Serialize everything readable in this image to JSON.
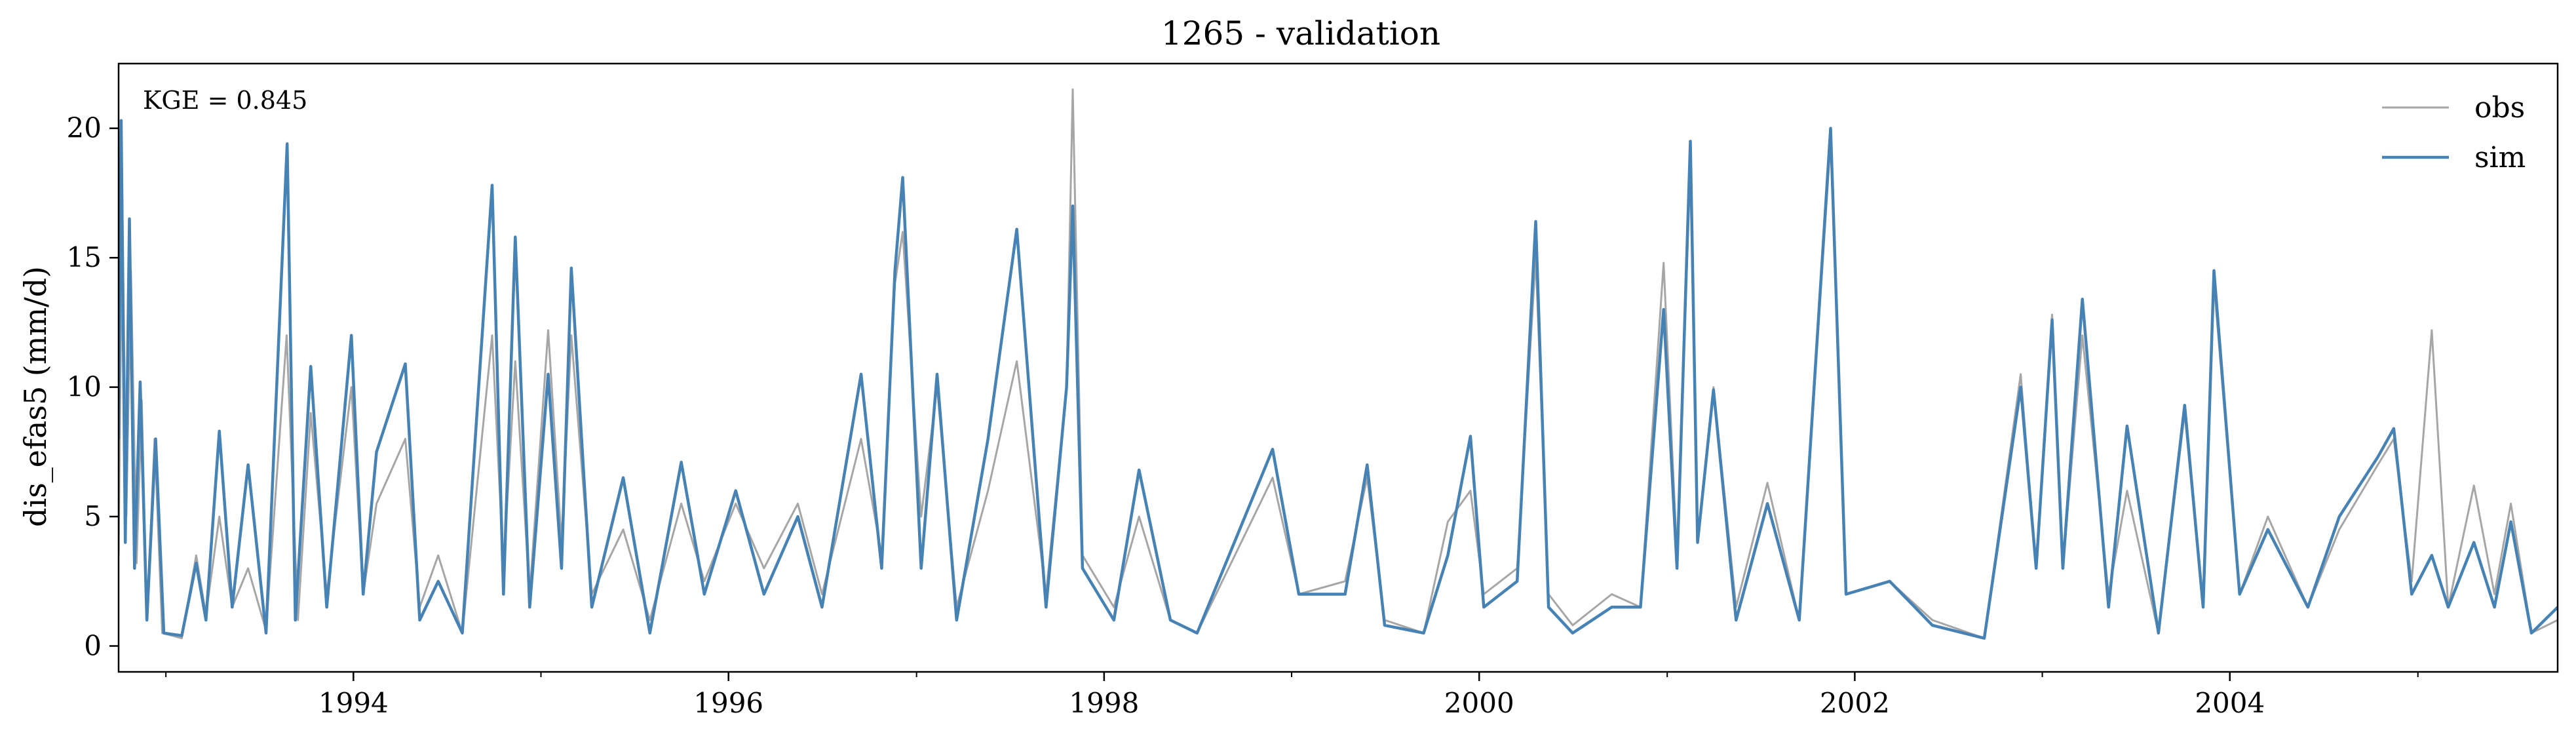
{
  "chart_data": {
    "type": "line",
    "title": "1265 - validation",
    "xlabel": "",
    "ylabel": "dis_efas5 (mm/d)",
    "annotation": "KGE = 0.845",
    "xlim": [
      "1992-10-01",
      "2005-09-30"
    ],
    "ylim": [
      -1,
      22.5
    ],
    "xticks": [
      "1994-01-01",
      "1996-01-01",
      "1998-01-01",
      "2000-01-01",
      "2002-01-01",
      "2004-01-01"
    ],
    "xticklabels": [
      "1994",
      "1996",
      "1998",
      "2000",
      "2002",
      "2004"
    ],
    "yticks": [
      0,
      5,
      10,
      15,
      20
    ],
    "yticklabels": [
      "0",
      "5",
      "10",
      "15",
      "20"
    ],
    "grid": false,
    "legend": {
      "placement": "top-right",
      "entries": [
        "obs",
        "sim"
      ]
    },
    "colors": {
      "obs": "#a6a6a6",
      "sim": "#4682b4"
    },
    "series": [
      {
        "name": "obs",
        "points": [
          [
            "1992-10-01",
            3.5
          ],
          [
            "1992-10-08",
            17.5
          ],
          [
            "1992-10-16",
            5.0
          ],
          [
            "1992-10-25",
            14.5
          ],
          [
            "1992-11-05",
            3.2
          ],
          [
            "1992-11-15",
            9.5
          ],
          [
            "1992-11-25",
            1.0
          ],
          [
            "1992-12-10",
            8.0
          ],
          [
            "1992-12-25",
            0.5
          ],
          [
            "1993-02-01",
            0.3
          ],
          [
            "1993-03-01",
            3.5
          ],
          [
            "1993-03-20",
            1.2
          ],
          [
            "1993-04-15",
            5.0
          ],
          [
            "1993-05-10",
            1.5
          ],
          [
            "1993-06-10",
            3.0
          ],
          [
            "1993-07-15",
            0.6
          ],
          [
            "1993-08-24",
            12.0
          ],
          [
            "1993-09-15",
            1.0
          ],
          [
            "1993-10-10",
            9.0
          ],
          [
            "1993-11-10",
            2.0
          ],
          [
            "1993-12-28",
            10.0
          ],
          [
            "1994-01-20",
            2.0
          ],
          [
            "1994-02-15",
            5.5
          ],
          [
            "1994-04-12",
            8.0
          ],
          [
            "1994-05-10",
            1.5
          ],
          [
            "1994-06-15",
            3.5
          ],
          [
            "1994-08-01",
            0.5
          ],
          [
            "1994-09-28",
            12.0
          ],
          [
            "1994-10-20",
            3.0
          ],
          [
            "1994-11-12",
            11.0
          ],
          [
            "1994-12-10",
            2.0
          ],
          [
            "1995-01-15",
            12.2
          ],
          [
            "1995-02-10",
            4.0
          ],
          [
            "1995-03-01",
            12.0
          ],
          [
            "1995-04-10",
            2.0
          ],
          [
            "1995-06-10",
            4.5
          ],
          [
            "1995-08-01",
            1.0
          ],
          [
            "1995-10-01",
            5.5
          ],
          [
            "1995-11-15",
            2.5
          ],
          [
            "1996-01-15",
            5.5
          ],
          [
            "1996-03-10",
            3.0
          ],
          [
            "1996-05-15",
            5.5
          ],
          [
            "1996-07-01",
            2.0
          ],
          [
            "1996-09-15",
            8.0
          ],
          [
            "1996-10-25",
            3.5
          ],
          [
            "1996-11-20",
            14.0
          ],
          [
            "1996-12-05",
            16.0
          ],
          [
            "1997-01-10",
            5.0
          ],
          [
            "1997-02-10",
            10.0
          ],
          [
            "1997-03-20",
            1.5
          ],
          [
            "1997-05-20",
            6.0
          ],
          [
            "1997-07-15",
            11.0
          ],
          [
            "1997-09-10",
            2.0
          ],
          [
            "1997-10-20",
            10.0
          ],
          [
            "1997-11-01",
            21.5
          ],
          [
            "1997-11-20",
            3.5
          ],
          [
            "1998-01-20",
            1.5
          ],
          [
            "1998-03-10",
            5.0
          ],
          [
            "1998-05-10",
            1.0
          ],
          [
            "1998-07-01",
            0.5
          ],
          [
            "1998-11-25",
            6.5
          ],
          [
            "1999-01-15",
            2.0
          ],
          [
            "1999-04-15",
            2.5
          ],
          [
            "1999-05-28",
            6.5
          ],
          [
            "1999-07-01",
            1.0
          ],
          [
            "1999-09-15",
            0.5
          ],
          [
            "1999-11-01",
            4.8
          ],
          [
            "1999-12-15",
            6.0
          ],
          [
            "2000-01-10",
            2.0
          ],
          [
            "2000-03-15",
            3.0
          ],
          [
            "2000-04-20",
            15.0
          ],
          [
            "2000-05-15",
            2.0
          ],
          [
            "2000-07-01",
            0.8
          ],
          [
            "2000-09-15",
            2.0
          ],
          [
            "2000-11-10",
            1.5
          ],
          [
            "2000-12-25",
            14.8
          ],
          [
            "2001-01-20",
            3.5
          ],
          [
            "2001-02-15",
            18.5
          ],
          [
            "2001-03-01",
            4.0
          ],
          [
            "2001-04-01",
            10.0
          ],
          [
            "2001-05-15",
            1.5
          ],
          [
            "2001-07-15",
            6.3
          ],
          [
            "2001-09-15",
            1.0
          ],
          [
            "2001-11-15",
            19.5
          ],
          [
            "2001-12-15",
            2.0
          ],
          [
            "2002-03-10",
            2.5
          ],
          [
            "2002-06-01",
            1.0
          ],
          [
            "2002-09-10",
            0.3
          ],
          [
            "2002-11-20",
            10.5
          ],
          [
            "2002-12-20",
            3.0
          ],
          [
            "2003-01-20",
            12.8
          ],
          [
            "2003-02-10",
            3.0
          ],
          [
            "2003-03-20",
            12.0
          ],
          [
            "2003-05-10",
            2.0
          ],
          [
            "2003-06-15",
            6.0
          ],
          [
            "2003-08-15",
            0.5
          ],
          [
            "2003-10-05",
            9.0
          ],
          [
            "2003-11-10",
            1.5
          ],
          [
            "2003-12-01",
            14.0
          ],
          [
            "2004-01-20",
            2.0
          ],
          [
            "2004-03-15",
            5.0
          ],
          [
            "2004-06-01",
            1.5
          ],
          [
            "2004-08-01",
            4.5
          ],
          [
            "2004-10-15",
            7.0
          ],
          [
            "2004-11-15",
            8.0
          ],
          [
            "2004-12-20",
            2.5
          ],
          [
            "2005-01-28",
            12.2
          ],
          [
            "2005-03-01",
            1.5
          ],
          [
            "2005-04-20",
            6.2
          ],
          [
            "2005-05-30",
            2.0
          ],
          [
            "2005-07-01",
            5.5
          ],
          [
            "2005-08-10",
            0.5
          ],
          [
            "2005-09-30",
            1.0
          ]
        ]
      },
      {
        "name": "sim",
        "points": [
          [
            "1992-10-01",
            8.0
          ],
          [
            "1992-10-06",
            20.3
          ],
          [
            "1992-10-14",
            4.0
          ],
          [
            "1992-10-22",
            16.5
          ],
          [
            "1992-11-01",
            3.0
          ],
          [
            "1992-11-12",
            10.2
          ],
          [
            "1992-11-25",
            1.0
          ],
          [
            "1992-12-12",
            8.0
          ],
          [
            "1992-12-28",
            0.5
          ],
          [
            "1993-02-01",
            0.4
          ],
          [
            "1993-03-01",
            3.2
          ],
          [
            "1993-03-20",
            1.0
          ],
          [
            "1993-04-15",
            8.3
          ],
          [
            "1993-05-10",
            1.5
          ],
          [
            "1993-06-10",
            7.0
          ],
          [
            "1993-07-15",
            0.5
          ],
          [
            "1993-08-25",
            19.4
          ],
          [
            "1993-09-10",
            1.0
          ],
          [
            "1993-10-10",
            10.8
          ],
          [
            "1993-11-10",
            1.5
          ],
          [
            "1993-12-28",
            12.0
          ],
          [
            "1994-01-20",
            2.0
          ],
          [
            "1994-02-15",
            7.5
          ],
          [
            "1994-04-12",
            10.9
          ],
          [
            "1994-05-10",
            1.0
          ],
          [
            "1994-06-15",
            2.5
          ],
          [
            "1994-08-01",
            0.5
          ],
          [
            "1994-09-28",
            17.8
          ],
          [
            "1994-10-20",
            2.0
          ],
          [
            "1994-11-12",
            15.8
          ],
          [
            "1994-12-10",
            1.5
          ],
          [
            "1995-01-15",
            10.5
          ],
          [
            "1995-02-10",
            3.0
          ],
          [
            "1995-03-01",
            14.6
          ],
          [
            "1995-04-10",
            1.5
          ],
          [
            "1995-06-10",
            6.5
          ],
          [
            "1995-08-01",
            0.5
          ],
          [
            "1995-10-01",
            7.1
          ],
          [
            "1995-11-15",
            2.0
          ],
          [
            "1996-01-15",
            6.0
          ],
          [
            "1996-03-10",
            2.0
          ],
          [
            "1996-05-15",
            5.0
          ],
          [
            "1996-07-01",
            1.5
          ],
          [
            "1996-09-15",
            10.5
          ],
          [
            "1996-10-25",
            3.0
          ],
          [
            "1996-11-20",
            14.5
          ],
          [
            "1996-12-05",
            18.1
          ],
          [
            "1997-01-10",
            3.0
          ],
          [
            "1997-02-10",
            10.5
          ],
          [
            "1997-03-20",
            1.0
          ],
          [
            "1997-05-20",
            8.0
          ],
          [
            "1997-07-15",
            16.1
          ],
          [
            "1997-09-10",
            1.5
          ],
          [
            "1997-10-20",
            10.0
          ],
          [
            "1997-11-01",
            17.0
          ],
          [
            "1997-11-20",
            3.0
          ],
          [
            "1998-01-20",
            1.0
          ],
          [
            "1998-03-10",
            6.8
          ],
          [
            "1998-05-10",
            1.0
          ],
          [
            "1998-07-01",
            0.5
          ],
          [
            "1998-11-25",
            7.6
          ],
          [
            "1999-01-15",
            2.0
          ],
          [
            "1999-04-15",
            2.0
          ],
          [
            "1999-05-28",
            7.0
          ],
          [
            "1999-07-01",
            0.8
          ],
          [
            "1999-09-15",
            0.5
          ],
          [
            "1999-11-01",
            3.5
          ],
          [
            "1999-12-15",
            8.1
          ],
          [
            "2000-01-10",
            1.5
          ],
          [
            "2000-03-15",
            2.5
          ],
          [
            "2000-04-20",
            16.4
          ],
          [
            "2000-05-15",
            1.5
          ],
          [
            "2000-07-01",
            0.5
          ],
          [
            "2000-09-15",
            1.5
          ],
          [
            "2000-11-10",
            1.5
          ],
          [
            "2000-12-25",
            13.0
          ],
          [
            "2001-01-20",
            3.0
          ],
          [
            "2001-02-15",
            19.5
          ],
          [
            "2001-03-01",
            4.0
          ],
          [
            "2001-04-01",
            9.9
          ],
          [
            "2001-05-15",
            1.0
          ],
          [
            "2001-07-15",
            5.5
          ],
          [
            "2001-09-15",
            1.0
          ],
          [
            "2001-11-15",
            20.0
          ],
          [
            "2001-12-15",
            2.0
          ],
          [
            "2002-03-10",
            2.5
          ],
          [
            "2002-06-01",
            0.8
          ],
          [
            "2002-09-10",
            0.3
          ],
          [
            "2002-11-20",
            10.0
          ],
          [
            "2002-12-20",
            3.0
          ],
          [
            "2003-01-20",
            12.6
          ],
          [
            "2003-02-10",
            3.0
          ],
          [
            "2003-03-20",
            13.4
          ],
          [
            "2003-05-10",
            1.5
          ],
          [
            "2003-06-15",
            8.5
          ],
          [
            "2003-08-15",
            0.5
          ],
          [
            "2003-10-05",
            9.3
          ],
          [
            "2003-11-10",
            1.5
          ],
          [
            "2003-12-01",
            14.5
          ],
          [
            "2004-01-20",
            2.0
          ],
          [
            "2004-03-15",
            4.5
          ],
          [
            "2004-06-01",
            1.5
          ],
          [
            "2004-08-01",
            5.0
          ],
          [
            "2004-10-15",
            7.3
          ],
          [
            "2004-11-15",
            8.4
          ],
          [
            "2004-12-20",
            2.0
          ],
          [
            "2005-01-28",
            3.5
          ],
          [
            "2005-03-01",
            1.5
          ],
          [
            "2005-04-20",
            4.0
          ],
          [
            "2005-05-30",
            1.5
          ],
          [
            "2005-07-01",
            4.8
          ],
          [
            "2005-08-10",
            0.5
          ],
          [
            "2005-09-30",
            1.5
          ]
        ]
      }
    ]
  }
}
